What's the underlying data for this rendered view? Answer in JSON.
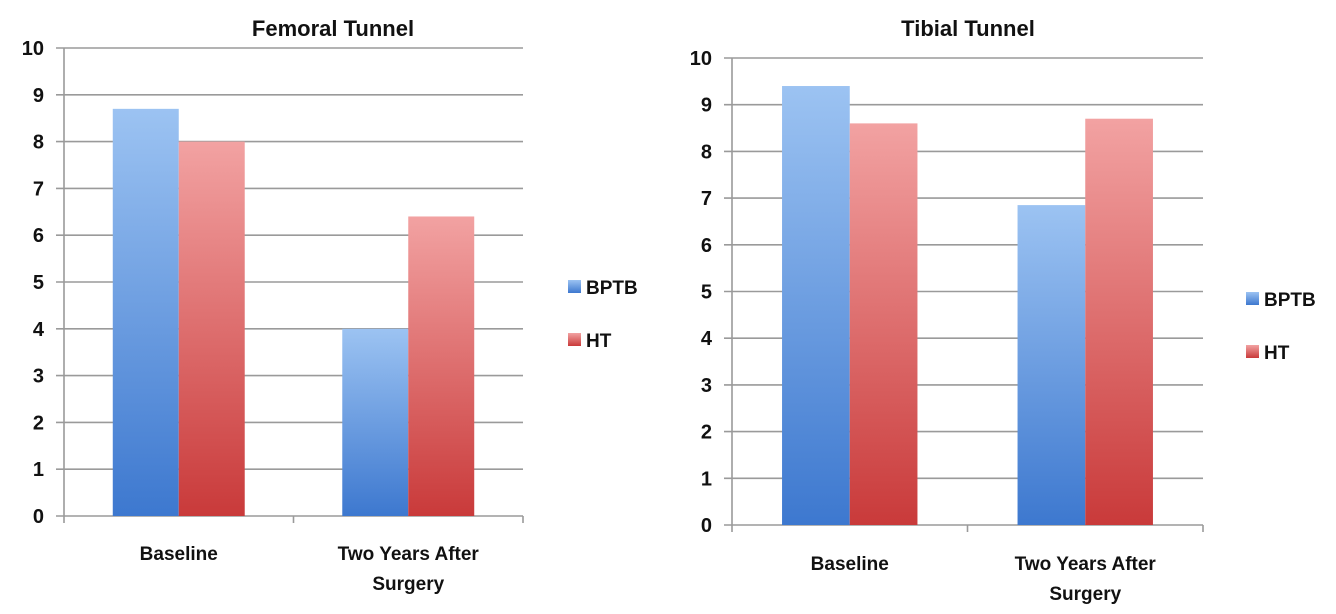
{
  "chart_data": [
    {
      "type": "bar",
      "title": "Femoral Tunnel",
      "categories": [
        "Baseline",
        "Two Years After Surgery"
      ],
      "category_lines": [
        [
          "Baseline"
        ],
        [
          "Two Years After",
          "Surgery"
        ]
      ],
      "ylim": [
        0,
        10
      ],
      "yticks": [
        "0",
        "1",
        "2",
        "3",
        "4",
        "5",
        "6",
        "7",
        "8",
        "9",
        "10"
      ],
      "grid": true,
      "legend_position": "right",
      "series": [
        {
          "name": "BPTB",
          "values": [
            8.7,
            4.0
          ]
        },
        {
          "name": "HT",
          "values": [
            8.0,
            6.4
          ]
        }
      ]
    },
    {
      "type": "bar",
      "title": "Tibial Tunnel",
      "categories": [
        "Baseline",
        "Two Years After Surgery"
      ],
      "category_lines": [
        [
          "Baseline"
        ],
        [
          "Two Years After",
          "Surgery"
        ]
      ],
      "ylim": [
        0,
        10
      ],
      "yticks": [
        "0",
        "1",
        "2",
        "3",
        "4",
        "5",
        "6",
        "7",
        "8",
        "9",
        "10"
      ],
      "grid": true,
      "legend_position": "right",
      "series": [
        {
          "name": "BPTB",
          "values": [
            9.4,
            6.85
          ]
        },
        {
          "name": "HT",
          "values": [
            8.6,
            8.7
          ]
        }
      ]
    }
  ],
  "colors": {
    "BPTB": {
      "light": "#9cc3f2",
      "dark": "#3d78cf"
    },
    "HT": {
      "light": "#f2a2a2",
      "dark": "#c93a3a"
    }
  }
}
